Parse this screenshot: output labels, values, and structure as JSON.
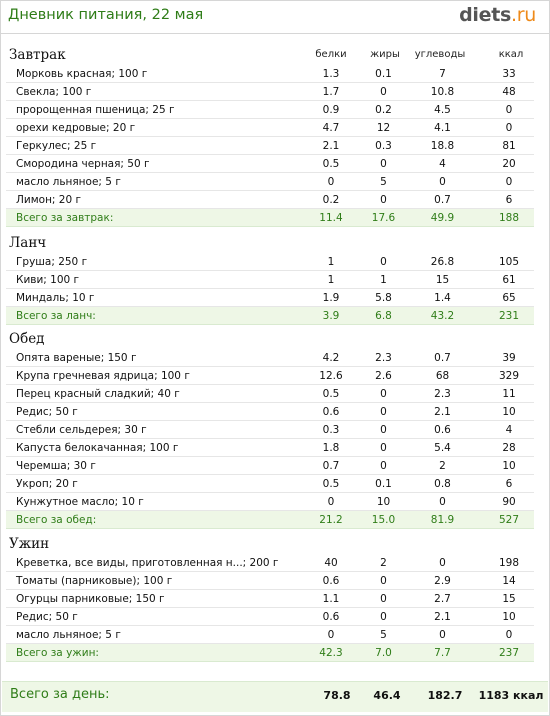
{
  "header": {
    "title": "Дневник питания, 22 мая",
    "logo_main": "diets",
    "logo_tld": ".ru"
  },
  "columns": {
    "proteins": "белки",
    "fats": "жиры",
    "carbs": "углеводы",
    "kcal": "ккал"
  },
  "meals": [
    {
      "title": "Завтрак",
      "items": [
        {
          "name": "Морковь красная; 100 г",
          "p": "1.3",
          "f": "0.1",
          "c": "7",
          "k": "33"
        },
        {
          "name": "Свекла; 100 г",
          "p": "1.7",
          "f": "0",
          "c": "10.8",
          "k": "48"
        },
        {
          "name": "пророщенная пшеница; 25 г",
          "p": "0.9",
          "f": "0.2",
          "c": "4.5",
          "k": "0"
        },
        {
          "name": "орехи кедровые; 20 г",
          "p": "4.7",
          "f": "12",
          "c": "4.1",
          "k": "0"
        },
        {
          "name": "Геркулес; 25 г",
          "p": "2.1",
          "f": "0.3",
          "c": "18.8",
          "k": "81"
        },
        {
          "name": "Смородина черная; 50 г",
          "p": "0.5",
          "f": "0",
          "c": "4",
          "k": "20"
        },
        {
          "name": "масло льняное; 5 г",
          "p": "0",
          "f": "5",
          "c": "0",
          "k": "0"
        },
        {
          "name": "Лимон; 20 г",
          "p": "0.2",
          "f": "0",
          "c": "0.7",
          "k": "6"
        }
      ],
      "total": {
        "label": "Всего за завтрак:",
        "p": "11.4",
        "f": "17.6",
        "c": "49.9",
        "k": "188"
      }
    },
    {
      "title": "Ланч",
      "items": [
        {
          "name": "Груша; 250 г",
          "p": "1",
          "f": "0",
          "c": "26.8",
          "k": "105"
        },
        {
          "name": "Киви; 100 г",
          "p": "1",
          "f": "1",
          "c": "15",
          "k": "61"
        },
        {
          "name": "Миндаль; 10 г",
          "p": "1.9",
          "f": "5.8",
          "c": "1.4",
          "k": "65"
        }
      ],
      "total": {
        "label": "Всего за ланч:",
        "p": "3.9",
        "f": "6.8",
        "c": "43.2",
        "k": "231"
      }
    },
    {
      "title": "Обед",
      "items": [
        {
          "name": "Опята вареные; 150 г",
          "p": "4.2",
          "f": "2.3",
          "c": "0.7",
          "k": "39"
        },
        {
          "name": "Крупа гречневая ядрица; 100 г",
          "p": "12.6",
          "f": "2.6",
          "c": "68",
          "k": "329"
        },
        {
          "name": "Перец красный сладкий; 40 г",
          "p": "0.5",
          "f": "0",
          "c": "2.3",
          "k": "11"
        },
        {
          "name": "Редис; 50 г",
          "p": "0.6",
          "f": "0",
          "c": "2.1",
          "k": "10"
        },
        {
          "name": "Стебли сельдерея; 30 г",
          "p": "0.3",
          "f": "0",
          "c": "0.6",
          "k": "4"
        },
        {
          "name": "Капуста белокачанная; 100 г",
          "p": "1.8",
          "f": "0",
          "c": "5.4",
          "k": "28"
        },
        {
          "name": "Черемша; 30 г",
          "p": "0.7",
          "f": "0",
          "c": "2",
          "k": "10"
        },
        {
          "name": "Укроп; 20 г",
          "p": "0.5",
          "f": "0.1",
          "c": "0.8",
          "k": "6"
        },
        {
          "name": "Кунжутное масло; 10 г",
          "p": "0",
          "f": "10",
          "c": "0",
          "k": "90"
        }
      ],
      "total": {
        "label": "Всего за обед:",
        "p": "21.2",
        "f": "15.0",
        "c": "81.9",
        "k": "527"
      }
    },
    {
      "title": "Ужин",
      "items": [
        {
          "name": "Креветка, все виды, приготовленная н...; 200 г",
          "p": "40",
          "f": "2",
          "c": "0",
          "k": "198"
        },
        {
          "name": "Томаты (парниковые); 100 г",
          "p": "0.6",
          "f": "0",
          "c": "2.9",
          "k": "14"
        },
        {
          "name": "Огурцы парниковые; 150 г",
          "p": "1.1",
          "f": "0",
          "c": "2.7",
          "k": "15"
        },
        {
          "name": "Редис; 50 г",
          "p": "0.6",
          "f": "0",
          "c": "2.1",
          "k": "10"
        },
        {
          "name": "масло льняное; 5 г",
          "p": "0",
          "f": "5",
          "c": "0",
          "k": "0"
        }
      ],
      "total": {
        "label": "Всего за ужин:",
        "p": "42.3",
        "f": "7.0",
        "c": "7.7",
        "k": "237"
      }
    }
  ],
  "day_total": {
    "label": "Всего за день:",
    "p": "78.8",
    "f": "46.4",
    "c": "182.7",
    "k": "1183 ккал"
  },
  "colors": {
    "accent_green": "#2f7d18",
    "total_bg": "#eef7e6",
    "logo_dot": "#ee8a1a"
  }
}
